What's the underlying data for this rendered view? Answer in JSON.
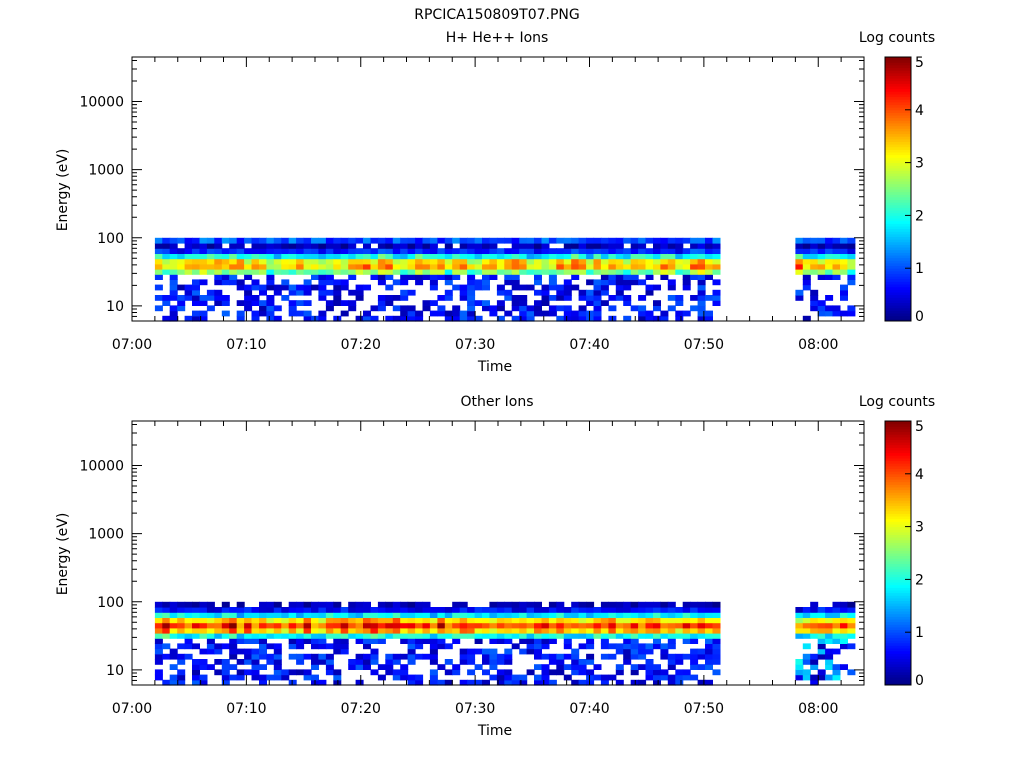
{
  "figure_title": "RPCICA150809T07.PNG",
  "chart_data": [
    {
      "type": "heatmap",
      "title": "H+ He++ Ions",
      "xlabel": "Time",
      "ylabel": "Energy (eV)",
      "x_tick_labels": [
        "07:00",
        "07:10",
        "07:20",
        "07:30",
        "07:40",
        "07:50",
        "08:00"
      ],
      "y_tick_labels": [
        "10",
        "100",
        "1000",
        "10000"
      ],
      "y_scale": "log",
      "ylim": [
        6,
        45000
      ],
      "xlim": [
        "07:00",
        "08:04"
      ],
      "colorbar": {
        "label": "Log counts",
        "range": [
          0,
          5
        ],
        "tick_labels": [
          "0",
          "1",
          "2",
          "3",
          "4",
          "5"
        ],
        "colormap": "jet"
      },
      "data_segments": [
        {
          "start": "07:02",
          "end": "07:51"
        },
        {
          "start": "07:58",
          "end": "08:03"
        }
      ],
      "energy_range_ev": [
        6,
        100
      ],
      "peak_energy_ev": 40,
      "gap": [
        "07:51",
        "07:58"
      ]
    },
    {
      "type": "heatmap",
      "title": "Other Ions",
      "xlabel": "Time",
      "ylabel": "Energy (eV)",
      "x_tick_labels": [
        "07:00",
        "07:10",
        "07:20",
        "07:30",
        "07:40",
        "07:50",
        "08:00"
      ],
      "y_tick_labels": [
        "10",
        "100",
        "1000",
        "10000"
      ],
      "y_scale": "log",
      "ylim": [
        6,
        45000
      ],
      "xlim": [
        "07:00",
        "08:04"
      ],
      "colorbar": {
        "label": "Log counts",
        "range": [
          0,
          5
        ],
        "tick_labels": [
          "0",
          "1",
          "2",
          "3",
          "4",
          "5"
        ],
        "colormap": "jet"
      },
      "data_segments": [
        {
          "start": "07:02",
          "end": "07:51"
        },
        {
          "start": "07:58",
          "end": "08:03"
        }
      ],
      "energy_range_ev": [
        6,
        100
      ],
      "peak_energy_ev": 45,
      "gap": [
        "07:51",
        "07:58"
      ]
    }
  ]
}
